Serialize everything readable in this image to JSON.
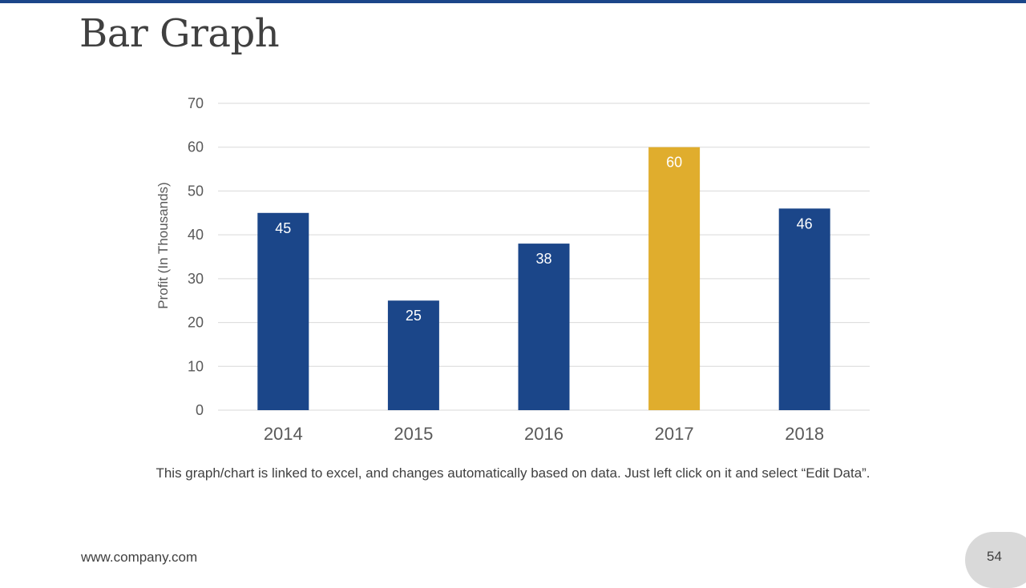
{
  "slide": {
    "title": "Bar Graph",
    "caption": "This graph/chart is linked to excel, and changes automatically based on data. Just left click on it and select “Edit Data”.",
    "footer_url": "www.company.com",
    "page_number": "54"
  },
  "colors": {
    "accent_bar": "#1b4689",
    "bar_primary": "#1b4689",
    "bar_highlight": "#e0ad2d",
    "gridline": "#d9d9d9",
    "axis_text": "#595959"
  },
  "chart_data": {
    "type": "bar",
    "title": "",
    "categories": [
      "2014",
      "2015",
      "2016",
      "2017",
      "2018"
    ],
    "values": [
      45,
      25,
      38,
      60,
      46
    ],
    "highlight_category": "2017",
    "xlabel": "",
    "ylabel": "Profit  (In Thousands)",
    "ylim": [
      0,
      70
    ],
    "yticks": [
      0,
      10,
      20,
      30,
      40,
      50,
      60,
      70
    ],
    "grid": true,
    "data_labels": true
  }
}
